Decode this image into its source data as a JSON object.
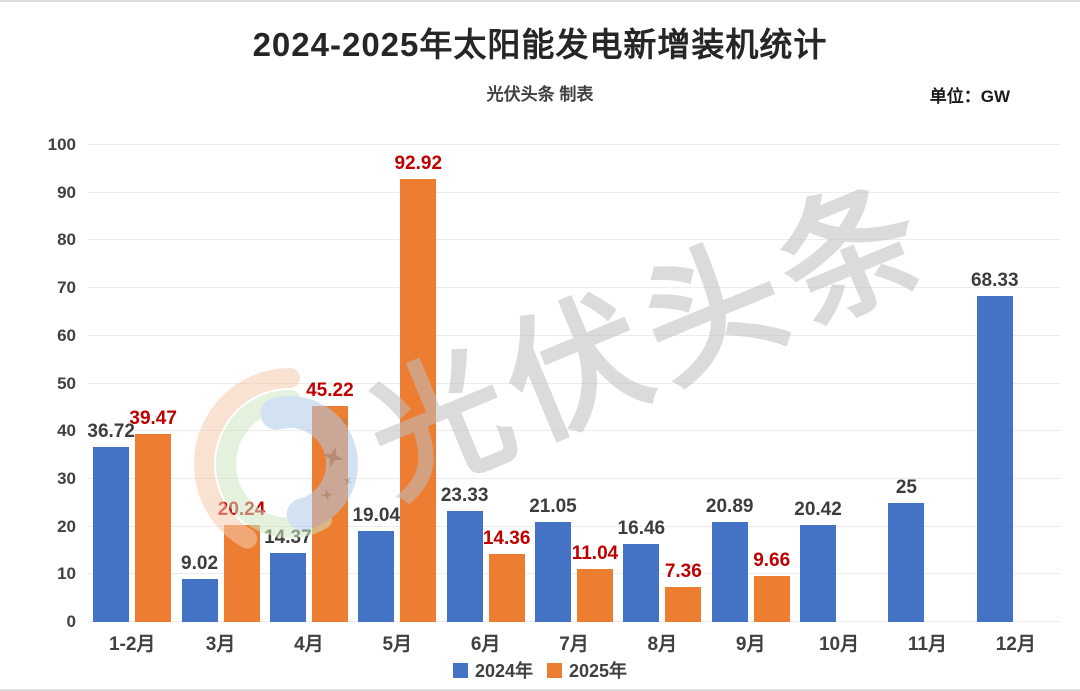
{
  "page": {
    "title": "2024-2025年太阳能发电新增装机统计",
    "subtitle": "光伏头条 制表",
    "unit_label": "单位：GW",
    "watermark_text": "光伏头条"
  },
  "legend": {
    "items": [
      "2024年",
      "2025年"
    ]
  },
  "chart_data": {
    "type": "bar",
    "title": "2024-2025年太阳能发电新增装机统计",
    "subtitle": "光伏头条 制表",
    "unit": "GW",
    "categories": [
      "1-2月",
      "3月",
      "4月",
      "5月",
      "6月",
      "7月",
      "8月",
      "9月",
      "10月",
      "11月",
      "12月"
    ],
    "series": [
      {
        "name": "2024年",
        "color": "#4472C4",
        "label_color": "#3d3d3d",
        "values": [
          36.72,
          9.02,
          14.37,
          19.04,
          23.33,
          21.05,
          16.46,
          20.89,
          20.42,
          25,
          68.33
        ]
      },
      {
        "name": "2025年",
        "color": "#ED7D31",
        "label_color": "#C00000",
        "values": [
          39.47,
          20.24,
          45.22,
          92.92,
          14.36,
          11.04,
          7.36,
          9.66,
          null,
          null,
          null
        ]
      }
    ],
    "ylim": [
      0,
      100
    ],
    "yticks": [
      0,
      10,
      20,
      30,
      40,
      50,
      60,
      70,
      80,
      90,
      100
    ],
    "grid": true,
    "legend_position": "bottom"
  }
}
